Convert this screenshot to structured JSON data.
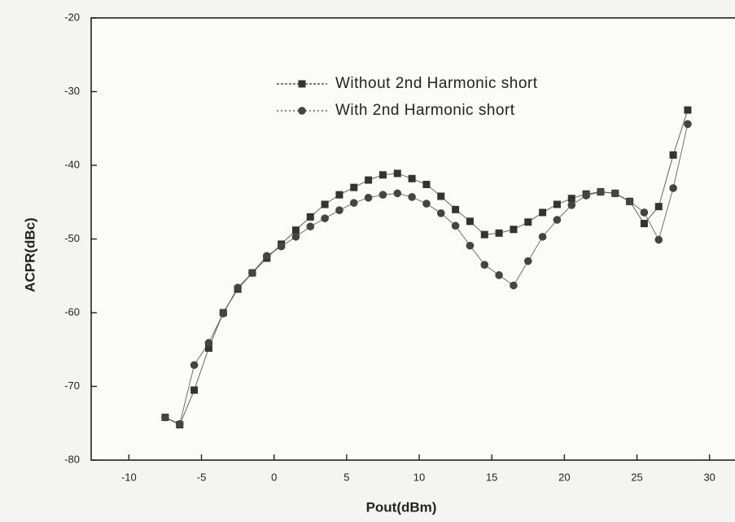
{
  "chart_data": {
    "type": "line",
    "x_label": "Pout(dBm)",
    "y_label": "ACPR(dBc)",
    "x": [
      -7.5,
      -6.5,
      -5.5,
      -4.5,
      -3.5,
      -2.5,
      -1.5,
      -0.5,
      0.5,
      1.5,
      2.5,
      3.5,
      4.5,
      5.5,
      6.5,
      7.5,
      8.5,
      9.5,
      10.5,
      11.5,
      12.5,
      13.5,
      14.5,
      15.5,
      16.5,
      17.5,
      18.5,
      19.5,
      20.5,
      21.5,
      22.5,
      23.5,
      24.5,
      25.5,
      26.5,
      27.5,
      28.5
    ],
    "series": [
      {
        "name": "Without 2nd Harmonic short",
        "color": "#333333",
        "marker": "square",
        "values": [
          -74.2,
          -75.2,
          -70.5,
          -64.8,
          -60,
          -56.8,
          -54.6,
          -52.6,
          -50.7,
          -48.8,
          -47,
          -45.3,
          -44,
          -43,
          -42,
          -41.3,
          -41.1,
          -41.8,
          -42.6,
          -44.2,
          -46,
          -47.6,
          -49.4,
          -49.2,
          -48.7,
          -47.7,
          -46.4,
          -45.3,
          -44.5,
          -43.9,
          -43.6,
          -43.8,
          -44.9,
          -47.9,
          -45.6,
          -38.6,
          -32.5
        ]
      },
      {
        "name": "With 2nd Harmonic short",
        "color": "#444444",
        "marker": "circle",
        "values": [
          -74.2,
          -75.1,
          -67.1,
          -64.1,
          -60.1,
          -56.6,
          -54.6,
          -52.3,
          -51,
          -49.7,
          -48.3,
          -47.2,
          -46.1,
          -45.1,
          -44.4,
          -44,
          -43.8,
          -44.3,
          -45.2,
          -46.5,
          -48.2,
          -50.9,
          -53.5,
          -54.9,
          -56.3,
          -53,
          -49.7,
          -47.4,
          -45.4,
          -44.1,
          -43.6,
          -43.8,
          -44.9,
          -46.4,
          -50.1,
          -43.1,
          -34.4
        ]
      }
    ],
    "xlim": [
      -12.6,
      31.7
    ],
    "ylim": [
      -80,
      -20
    ],
    "xticks": [
      -10,
      -5,
      0,
      5,
      10,
      15,
      20,
      25,
      30
    ],
    "yticks": [
      -80,
      -70,
      -60,
      -50,
      -40,
      -30,
      -20
    ],
    "legend": "top"
  }
}
